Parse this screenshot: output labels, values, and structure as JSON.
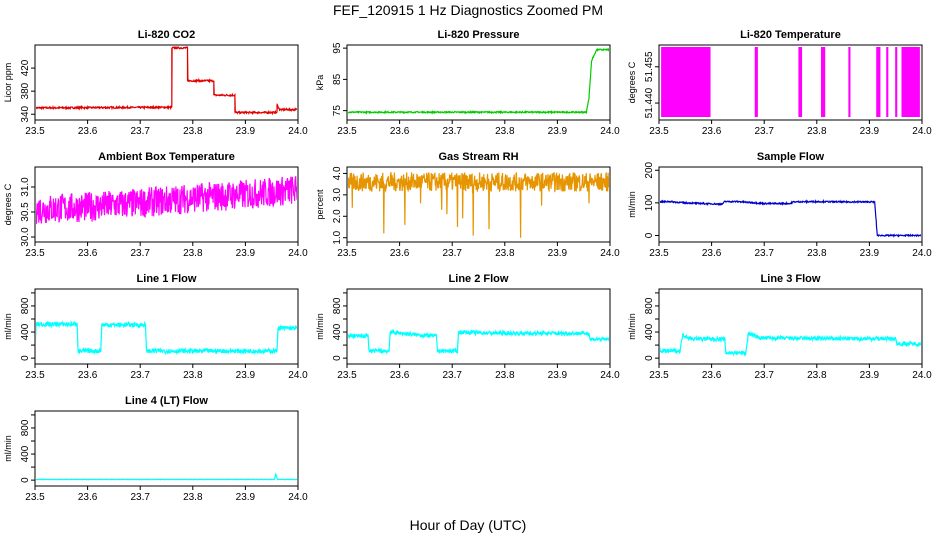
{
  "page_title": "FEF_120915  1 Hz Diagnostics Zoomed PM",
  "x_axis_label": "Hour of Day (UTC)",
  "chart_data": [
    {
      "type": "line",
      "title": "Li-820 CO2",
      "ylabel": "Licor ppm",
      "color": "#e00000",
      "xlim": [
        23.5,
        24.0
      ],
      "ylim": [
        330,
        460
      ],
      "x_ticks": [
        "23.5",
        "23.6",
        "23.7",
        "23.8",
        "23.9",
        "24.0"
      ],
      "y_ticks": [
        340,
        380,
        420
      ],
      "points": [
        [
          23.5,
          351
        ],
        [
          23.76,
          352
        ],
        [
          23.76,
          455
        ],
        [
          23.79,
          455
        ],
        [
          23.79,
          398
        ],
        [
          23.84,
          398
        ],
        [
          23.84,
          373
        ],
        [
          23.88,
          373
        ],
        [
          23.88,
          343
        ],
        [
          23.96,
          343
        ],
        [
          23.96,
          357
        ],
        [
          23.965,
          348
        ],
        [
          24.0,
          348
        ]
      ],
      "noise": 1.5
    },
    {
      "type": "line",
      "title": "Li-820 Pressure",
      "ylabel": "kPa",
      "color": "#00cc00",
      "xlim": [
        23.5,
        24.0
      ],
      "ylim": [
        72,
        96
      ],
      "x_ticks": [
        "23.5",
        "23.6",
        "23.7",
        "23.8",
        "23.9",
        "24.0"
      ],
      "y_ticks": [
        75,
        85,
        95
      ],
      "points": [
        [
          23.5,
          74.5
        ],
        [
          23.955,
          74.5
        ],
        [
          23.96,
          79
        ],
        [
          23.965,
          91
        ],
        [
          23.975,
          94.5
        ],
        [
          24.0,
          94.5
        ]
      ],
      "noise": 0.2
    },
    {
      "type": "area",
      "title": "Li-820 Temperature",
      "ylabel": "degrees C",
      "color": "#ff00ff",
      "xlim": [
        23.5,
        24.0
      ],
      "ylim": [
        51.433,
        51.464
      ],
      "x_ticks": [
        "23.5",
        "23.6",
        "23.7",
        "23.8",
        "23.9",
        "24.0"
      ],
      "y_ticks": [
        51.44,
        51.455
      ],
      "y_tick_labels": [
        "51.440",
        "51.455"
      ],
      "points": [
        [
          23.5,
          51.462
        ],
        [
          24.0,
          51.462
        ]
      ],
      "gaps": [
        23.598,
        23.682,
        23.688,
        23.765,
        23.772,
        23.808,
        23.816,
        23.86,
        23.864,
        23.913,
        23.921,
        23.932,
        23.936,
        23.949,
        23.953,
        23.961
      ]
    },
    {
      "type": "line",
      "title": "Ambient Box Temperature",
      "ylabel": "degrees C",
      "color": "#ff00ff",
      "xlim": [
        23.5,
        24.0
      ],
      "ylim": [
        29.9,
        31.4
      ],
      "x_ticks": [
        "23.5",
        "23.6",
        "23.7",
        "23.8",
        "23.9",
        "24.0"
      ],
      "y_ticks": [
        30.0,
        30.5,
        31.0
      ],
      "y_tick_labels": [
        "30.0",
        "30.5",
        "31.0"
      ],
      "points": [
        [
          23.5,
          30.55
        ],
        [
          23.6,
          30.6
        ],
        [
          23.7,
          30.68
        ],
        [
          23.8,
          30.78
        ],
        [
          23.9,
          30.85
        ],
        [
          24.0,
          30.95
        ]
      ],
      "noise": 0.3
    },
    {
      "type": "line",
      "title": "Gas Stream RH",
      "ylabel": "percent",
      "color": "#e69500",
      "xlim": [
        23.5,
        24.0
      ],
      "ylim": [
        0.8,
        4.3
      ],
      "x_ticks": [
        "23.5",
        "23.6",
        "23.7",
        "23.8",
        "23.9",
        "24.0"
      ],
      "y_ticks": [
        1.0,
        2.0,
        3.0,
        4.0
      ],
      "y_tick_labels": [
        "1.0",
        "2.0",
        "3.0",
        "4.0"
      ],
      "points": [
        [
          23.5,
          3.6
        ],
        [
          24.0,
          3.6
        ]
      ],
      "noise": 0.45,
      "dips": [
        [
          23.51,
          2.4
        ],
        [
          23.57,
          1.2
        ],
        [
          23.61,
          1.6
        ],
        [
          23.64,
          2.6
        ],
        [
          23.68,
          2.3
        ],
        [
          23.69,
          2.1
        ],
        [
          23.71,
          1.5
        ],
        [
          23.72,
          1.9
        ],
        [
          23.74,
          1.1
        ],
        [
          23.77,
          1.4
        ],
        [
          23.83,
          1.0
        ],
        [
          23.87,
          2.5
        ],
        [
          23.96,
          2.6
        ]
      ]
    },
    {
      "type": "line",
      "title": "Sample Flow",
      "ylabel": "ml/min",
      "color": "#0000cc",
      "xlim": [
        23.5,
        24.0
      ],
      "ylim": [
        -20,
        210
      ],
      "x_ticks": [
        "23.5",
        "23.6",
        "23.7",
        "23.8",
        "23.9",
        "24.0"
      ],
      "y_ticks": [
        0,
        100,
        200
      ],
      "points": [
        [
          23.5,
          103
        ],
        [
          23.52,
          104
        ],
        [
          23.55,
          100
        ],
        [
          23.6,
          97
        ],
        [
          23.62,
          96
        ],
        [
          23.625,
          104
        ],
        [
          23.65,
          104
        ],
        [
          23.7,
          98
        ],
        [
          23.75,
          98
        ],
        [
          23.755,
          103
        ],
        [
          23.8,
          104
        ],
        [
          23.85,
          103
        ],
        [
          23.91,
          103
        ],
        [
          23.915,
          0
        ],
        [
          24.0,
          0
        ]
      ],
      "noise": 2
    },
    {
      "type": "line",
      "title": "Line 1 Flow",
      "ylabel": "ml/min",
      "color": "#00ffff",
      "xlim": [
        23.5,
        24.0
      ],
      "ylim": [
        -90,
        1060
      ],
      "x_ticks": [
        "23.5",
        "23.6",
        "23.7",
        "23.8",
        "23.9",
        "24.0"
      ],
      "y_ticks": [
        0,
        400,
        800
      ],
      "y_ticks_minor": [
        200,
        600,
        1000
      ],
      "points": [
        [
          23.5,
          120
        ],
        [
          23.502,
          520
        ],
        [
          23.58,
          520
        ],
        [
          23.582,
          110
        ],
        [
          23.625,
          110
        ],
        [
          23.627,
          510
        ],
        [
          23.71,
          510
        ],
        [
          23.712,
          110
        ],
        [
          23.96,
          110
        ],
        [
          23.962,
          460
        ],
        [
          24.0,
          460
        ]
      ],
      "noise": 35
    },
    {
      "type": "line",
      "title": "Line 2 Flow",
      "ylabel": "ml/min",
      "color": "#00ffff",
      "xlim": [
        23.5,
        24.0
      ],
      "ylim": [
        -90,
        1060
      ],
      "x_ticks": [
        "23.5",
        "23.6",
        "23.7",
        "23.8",
        "23.9",
        "24.0"
      ],
      "y_ticks": [
        0,
        400,
        800
      ],
      "y_ticks_minor": [
        200,
        600,
        1000
      ],
      "points": [
        [
          23.5,
          340
        ],
        [
          23.54,
          340
        ],
        [
          23.542,
          110
        ],
        [
          23.58,
          110
        ],
        [
          23.582,
          400
        ],
        [
          23.63,
          360
        ],
        [
          23.67,
          340
        ],
        [
          23.672,
          110
        ],
        [
          23.71,
          110
        ],
        [
          23.712,
          400
        ],
        [
          23.8,
          380
        ],
        [
          23.96,
          380
        ],
        [
          23.962,
          290
        ],
        [
          24.0,
          290
        ]
      ],
      "noise": 30
    },
    {
      "type": "line",
      "title": "Line 3 Flow",
      "ylabel": "ml/min",
      "color": "#00ffff",
      "xlim": [
        23.5,
        24.0
      ],
      "ylim": [
        -90,
        1060
      ],
      "x_ticks": [
        "23.5",
        "23.6",
        "23.7",
        "23.8",
        "23.9",
        "24.0"
      ],
      "y_ticks": [
        0,
        400,
        800
      ],
      "y_ticks_minor": [
        200,
        600,
        1000
      ],
      "points": [
        [
          23.5,
          200
        ],
        [
          23.502,
          110
        ],
        [
          23.54,
          110
        ],
        [
          23.545,
          360
        ],
        [
          23.56,
          300
        ],
        [
          23.625,
          290
        ],
        [
          23.627,
          80
        ],
        [
          23.665,
          80
        ],
        [
          23.67,
          380
        ],
        [
          23.69,
          310
        ],
        [
          23.8,
          300
        ],
        [
          23.95,
          300
        ],
        [
          23.952,
          220
        ],
        [
          24.0,
          220
        ]
      ],
      "noise": 30
    },
    {
      "type": "line",
      "title": "Line 4 (LT) Flow",
      "ylabel": "ml/min",
      "color": "#00ffff",
      "xlim": [
        23.5,
        24.0
      ],
      "ylim": [
        -90,
        1060
      ],
      "x_ticks": [
        "23.5",
        "23.6",
        "23.7",
        "23.8",
        "23.9",
        "24.0"
      ],
      "y_ticks": [
        0,
        400,
        800
      ],
      "y_ticks_minor": [
        200,
        600,
        1000
      ],
      "points": [
        [
          23.5,
          10
        ],
        [
          23.955,
          10
        ],
        [
          23.958,
          90
        ],
        [
          23.961,
          10
        ],
        [
          24.0,
          10
        ]
      ],
      "noise": 3
    }
  ]
}
